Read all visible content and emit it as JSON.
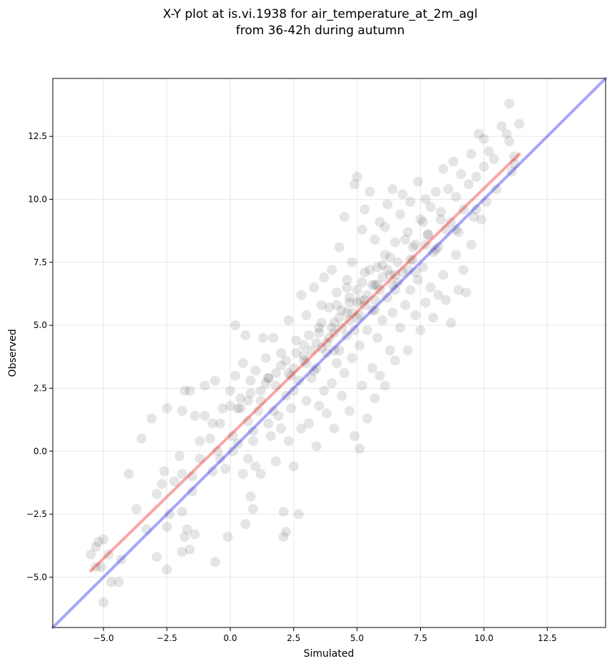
{
  "chart_data": {
    "type": "scatter",
    "title_line1": "X-Y plot at is.vi.1938 for air_temperature_at_2m_agl",
    "title_line2": "from 36-42h during autumn",
    "xlabel": "Simulated",
    "ylabel": "Observed",
    "xlim": [
      -7.0,
      14.8
    ],
    "ylim": [
      -7.0,
      14.8
    ],
    "xticks": [
      -5.0,
      -2.5,
      0.0,
      2.5,
      5.0,
      7.5,
      10.0,
      12.5
    ],
    "yticks": [
      -5.0,
      -2.5,
      0.0,
      2.5,
      5.0,
      7.5,
      10.0,
      12.5
    ],
    "xtick_labels": [
      "−5.0",
      "−2.5",
      "0.0",
      "2.5",
      "5.0",
      "7.5",
      "10.0",
      "12.5"
    ],
    "ytick_labels": [
      "−5.0",
      "−2.5",
      "0.0",
      "2.5",
      "5.0",
      "7.5",
      "10.0",
      "12.5"
    ],
    "grid": true,
    "point_color": "#000000",
    "point_opacity": 0.1,
    "identity_line": {
      "color": "#0000ee",
      "opacity": 0.35,
      "x": [
        -7.0,
        14.8
      ],
      "y": [
        -7.0,
        14.8
      ]
    },
    "regression_line": {
      "color": "#ee0000",
      "opacity": 0.35,
      "x": [
        -5.5,
        11.4
      ],
      "y": [
        -4.75,
        11.8
      ]
    },
    "points": [
      [
        -5.5,
        -4.1
      ],
      [
        -5.2,
        -3.6
      ],
      [
        -5.3,
        -3.8
      ],
      [
        -5.0,
        -3.5
      ],
      [
        -4.8,
        -4.1
      ],
      [
        -5.1,
        -4.6
      ],
      [
        -4.7,
        -5.2
      ],
      [
        -5.0,
        -6.0
      ],
      [
        -4.4,
        -5.2
      ],
      [
        -4.3,
        -4.3
      ],
      [
        -5.3,
        -4.6
      ],
      [
        -4.0,
        -0.9
      ],
      [
        -3.7,
        -2.3
      ],
      [
        -3.5,
        0.5
      ],
      [
        -3.3,
        -3.1
      ],
      [
        -3.1,
        1.3
      ],
      [
        -2.9,
        -1.7
      ],
      [
        -2.9,
        -4.2
      ],
      [
        -2.7,
        -1.3
      ],
      [
        -2.6,
        -0.8
      ],
      [
        -2.5,
        1.7
      ],
      [
        -2.5,
        -3.0
      ],
      [
        -2.5,
        -4.7
      ],
      [
        -2.4,
        -2.5
      ],
      [
        -2.2,
        -1.2
      ],
      [
        -2.0,
        -0.2
      ],
      [
        -1.9,
        -0.9
      ],
      [
        -1.9,
        -2.4
      ],
      [
        -1.9,
        -4.0
      ],
      [
        -1.8,
        -3.4
      ],
      [
        -1.7,
        -3.1
      ],
      [
        -1.6,
        -3.9
      ],
      [
        -1.5,
        -1.0
      ],
      [
        -1.4,
        -3.3
      ],
      [
        -1.9,
        1.6
      ],
      [
        -1.8,
        2.4
      ],
      [
        -1.6,
        2.4
      ],
      [
        -1.4,
        1.4
      ],
      [
        -1.2,
        0.4
      ],
      [
        -1.2,
        -0.3
      ],
      [
        -1.0,
        1.4
      ],
      [
        -1.0,
        2.6
      ],
      [
        -0.8,
        0.5
      ],
      [
        -0.7,
        1.1
      ],
      [
        -0.6,
        2.8
      ],
      [
        -0.6,
        -4.4
      ],
      [
        -0.5,
        0.0
      ],
      [
        -0.4,
        -0.3
      ],
      [
        -0.3,
        1.7
      ],
      [
        -0.2,
        -0.7
      ],
      [
        -0.1,
        -3.4
      ],
      [
        0.0,
        2.4
      ],
      [
        0.0,
        1.8
      ],
      [
        0.1,
        0.6
      ],
      [
        0.2,
        3.0
      ],
      [
        0.2,
        5.0
      ],
      [
        0.3,
        0.3
      ],
      [
        0.4,
        1.7
      ],
      [
        0.4,
        2.1
      ],
      [
        0.5,
        3.5
      ],
      [
        0.5,
        -0.9
      ],
      [
        0.6,
        -2.9
      ],
      [
        0.6,
        4.6
      ],
      [
        0.7,
        1.2
      ],
      [
        0.7,
        -0.3
      ],
      [
        0.8,
        -1.8
      ],
      [
        0.8,
        2.8
      ],
      [
        0.9,
        -2.3
      ],
      [
        0.9,
        0.4
      ],
      [
        1.0,
        3.2
      ],
      [
        1.0,
        -0.6
      ],
      [
        1.1,
        1.6
      ],
      [
        1.2,
        2.4
      ],
      [
        1.2,
        -0.9
      ],
      [
        1.3,
        4.5
      ],
      [
        1.4,
        3.7
      ],
      [
        1.5,
        1.1
      ],
      [
        1.5,
        2.9
      ],
      [
        1.6,
        0.6
      ],
      [
        1.7,
        4.5
      ],
      [
        1.8,
        3.1
      ],
      [
        1.8,
        -0.4
      ],
      [
        1.9,
        1.4
      ],
      [
        2.0,
        3.9
      ],
      [
        2.0,
        0.9
      ],
      [
        2.1,
        -3.4
      ],
      [
        2.1,
        -2.4
      ],
      [
        2.2,
        -3.2
      ],
      [
        2.2,
        2.2
      ],
      [
        2.3,
        5.2
      ],
      [
        2.3,
        0.4
      ],
      [
        2.4,
        1.7
      ],
      [
        2.5,
        3.3
      ],
      [
        2.5,
        -0.6
      ],
      [
        2.6,
        4.4
      ],
      [
        2.7,
        2.8
      ],
      [
        2.7,
        -2.5
      ],
      [
        2.8,
        6.2
      ],
      [
        2.8,
        0.9
      ],
      [
        2.9,
        3.6
      ],
      [
        3.0,
        2.0
      ],
      [
        3.0,
        5.4
      ],
      [
        3.1,
        1.1
      ],
      [
        3.2,
        4.0
      ],
      [
        3.2,
        2.9
      ],
      [
        3.3,
        6.5
      ],
      [
        3.4,
        0.2
      ],
      [
        3.4,
        3.3
      ],
      [
        3.5,
        4.7
      ],
      [
        3.5,
        1.8
      ],
      [
        3.6,
        5.8
      ],
      [
        3.7,
        2.4
      ],
      [
        3.7,
        6.9
      ],
      [
        3.8,
        3.9
      ],
      [
        3.8,
        1.5
      ],
      [
        3.9,
        4.5
      ],
      [
        4.0,
        7.2
      ],
      [
        4.0,
        2.7
      ],
      [
        4.1,
        5.1
      ],
      [
        4.1,
        0.9
      ],
      [
        4.2,
        3.5
      ],
      [
        4.2,
        6.3
      ],
      [
        4.3,
        4.0
      ],
      [
        4.3,
        8.1
      ],
      [
        4.4,
        2.2
      ],
      [
        4.4,
        5.6
      ],
      [
        4.5,
        9.3
      ],
      [
        4.5,
        3.1
      ],
      [
        4.6,
        6.8
      ],
      [
        4.6,
        4.6
      ],
      [
        4.7,
        1.6
      ],
      [
        4.7,
        5.9
      ],
      [
        4.8,
        7.5
      ],
      [
        4.8,
        3.7
      ],
      [
        4.9,
        10.6
      ],
      [
        4.9,
        0.6
      ],
      [
        5.0,
        5.3
      ],
      [
        5.0,
        10.9
      ],
      [
        5.0,
        6.4
      ],
      [
        5.1,
        0.1
      ],
      [
        5.1,
        4.2
      ],
      [
        5.2,
        8.8
      ],
      [
        5.2,
        2.6
      ],
      [
        5.3,
        6.0
      ],
      [
        5.3,
        9.6
      ],
      [
        5.4,
        4.8
      ],
      [
        5.4,
        1.3
      ],
      [
        5.5,
        7.2
      ],
      [
        5.5,
        10.3
      ],
      [
        5.6,
        3.3
      ],
      [
        5.6,
        5.6
      ],
      [
        5.7,
        8.4
      ],
      [
        5.7,
        2.1
      ],
      [
        5.8,
        6.6
      ],
      [
        5.8,
        4.5
      ],
      [
        5.9,
        9.1
      ],
      [
        5.9,
        3.0
      ],
      [
        6.0,
        7.4
      ],
      [
        6.0,
        5.2
      ],
      [
        6.1,
        8.9
      ],
      [
        6.1,
        2.6
      ],
      [
        6.2,
        6.1
      ],
      [
        6.2,
        9.8
      ],
      [
        6.3,
        4.0
      ],
      [
        6.3,
        7.7
      ],
      [
        6.4,
        10.4
      ],
      [
        6.4,
        5.5
      ],
      [
        6.5,
        3.6
      ],
      [
        6.5,
        8.3
      ],
      [
        6.6,
        6.7
      ],
      [
        6.7,
        9.4
      ],
      [
        6.7,
        4.9
      ],
      [
        6.8,
        7.1
      ],
      [
        6.8,
        10.2
      ],
      [
        6.9,
        5.8
      ],
      [
        7.0,
        8.7
      ],
      [
        7.0,
        4.0
      ],
      [
        7.1,
        6.4
      ],
      [
        7.1,
        9.9
      ],
      [
        7.2,
        7.6
      ],
      [
        7.3,
        5.4
      ],
      [
        7.3,
        8.2
      ],
      [
        7.4,
        10.7
      ],
      [
        7.4,
        6.8
      ],
      [
        7.5,
        9.2
      ],
      [
        7.5,
        4.8
      ],
      [
        7.6,
        7.3
      ],
      [
        7.7,
        10.0
      ],
      [
        7.7,
        5.9
      ],
      [
        7.8,
        8.6
      ],
      [
        7.9,
        6.5
      ],
      [
        7.9,
        9.7
      ],
      [
        8.0,
        7.9
      ],
      [
        8.0,
        5.3
      ],
      [
        8.1,
        10.3
      ],
      [
        8.2,
        8.1
      ],
      [
        8.2,
        6.2
      ],
      [
        8.3,
        9.5
      ],
      [
        8.4,
        11.2
      ],
      [
        8.4,
        7.0
      ],
      [
        8.5,
        8.8
      ],
      [
        8.5,
        6.0
      ],
      [
        8.6,
        10.4
      ],
      [
        8.7,
        5.1
      ],
      [
        8.7,
        9.1
      ],
      [
        8.8,
        11.5
      ],
      [
        8.9,
        7.8
      ],
      [
        8.9,
        10.1
      ],
      [
        9.0,
        6.4
      ],
      [
        9.0,
        8.7
      ],
      [
        9.1,
        11.0
      ],
      [
        9.2,
        7.2
      ],
      [
        9.2,
        9.6
      ],
      [
        9.3,
        6.3
      ],
      [
        9.4,
        10.6
      ],
      [
        9.5,
        8.2
      ],
      [
        9.5,
        11.8
      ],
      [
        9.6,
        9.3
      ],
      [
        9.7,
        10.9
      ],
      [
        9.8,
        12.6
      ],
      [
        9.9,
        9.2
      ],
      [
        10.0,
        11.3
      ],
      [
        10.0,
        12.4
      ],
      [
        10.1,
        9.9
      ],
      [
        10.2,
        11.9
      ],
      [
        10.4,
        11.6
      ],
      [
        10.7,
        12.9
      ],
      [
        10.9,
        12.6
      ],
      [
        11.0,
        12.3
      ],
      [
        11.1,
        11.1
      ],
      [
        11.2,
        11.7
      ],
      [
        11.4,
        13.0
      ],
      [
        11.0,
        13.8
      ],
      [
        11.2,
        11.4
      ],
      [
        10.5,
        10.4
      ],
      [
        9.7,
        9.6
      ],
      [
        8.9,
        8.8
      ],
      [
        8.1,
        8.0
      ],
      [
        7.3,
        7.1
      ],
      [
        6.5,
        6.4
      ],
      [
        5.7,
        5.6
      ],
      [
        4.9,
        4.8
      ],
      [
        4.1,
        4.0
      ],
      [
        3.3,
        3.2
      ],
      [
        2.5,
        2.4
      ],
      [
        1.7,
        1.6
      ],
      [
        0.9,
        0.8
      ],
      [
        0.1,
        0.0
      ],
      [
        -0.7,
        -0.8
      ],
      [
        -1.5,
        -1.6
      ],
      [
        3.9,
        5.7
      ],
      [
        4.6,
        6.5
      ],
      [
        5.3,
        7.1
      ],
      [
        6.1,
        7.8
      ],
      [
        6.9,
        8.4
      ],
      [
        7.6,
        9.1
      ],
      [
        4.3,
        5.3
      ],
      [
        5.0,
        5.9
      ],
      [
        5.6,
        6.6
      ],
      [
        6.3,
        7.0
      ],
      [
        3.5,
        4.9
      ],
      [
        2.9,
        4.2
      ],
      [
        2.2,
        3.6
      ],
      [
        1.5,
        2.9
      ],
      [
        0.8,
        2.3
      ],
      [
        0.3,
        1.7
      ],
      [
        -0.4,
        1.1
      ],
      [
        4.8,
        5.5
      ],
      [
        5.4,
        6.2
      ],
      [
        6.0,
        6.9
      ],
      [
        3.1,
        4.6
      ],
      [
        3.6,
        5.1
      ],
      [
        4.2,
        5.8
      ],
      [
        4.7,
        6.1
      ],
      [
        5.2,
        6.7
      ],
      [
        5.8,
        7.3
      ],
      [
        6.6,
        7.5
      ],
      [
        7.2,
        8.1
      ],
      [
        7.8,
        8.6
      ],
      [
        8.3,
        9.2
      ],
      [
        2.6,
        3.9
      ],
      [
        2.0,
        3.4
      ],
      [
        1.4,
        2.7
      ],
      [
        0.7,
        2.0
      ],
      [
        3.8,
        4.3
      ],
      [
        4.4,
        4.9
      ],
      [
        5.1,
        5.4
      ],
      [
        5.7,
        6.0
      ],
      [
        6.4,
        6.6
      ],
      [
        7.0,
        7.2
      ],
      [
        2.4,
        3.0
      ],
      [
        3.0,
        3.5
      ],
      [
        3.6,
        4.1
      ],
      [
        4.1,
        4.7
      ],
      [
        4.7,
        5.2
      ],
      [
        5.3,
        5.8
      ],
      [
        5.9,
        6.4
      ],
      [
        6.5,
        7.0
      ],
      [
        7.1,
        7.6
      ],
      [
        7.7,
        8.2
      ],
      [
        1.2,
        2.0
      ],
      [
        1.8,
        2.6
      ],
      [
        2.3,
        3.1
      ],
      [
        2.9,
        3.8
      ],
      [
        3.4,
        4.3
      ],
      [
        4.0,
        4.9
      ],
      [
        4.6,
        5.5
      ],
      [
        5.1,
        6.0
      ],
      [
        5.7,
        6.6
      ],
      [
        6.2,
        7.2
      ]
    ]
  }
}
